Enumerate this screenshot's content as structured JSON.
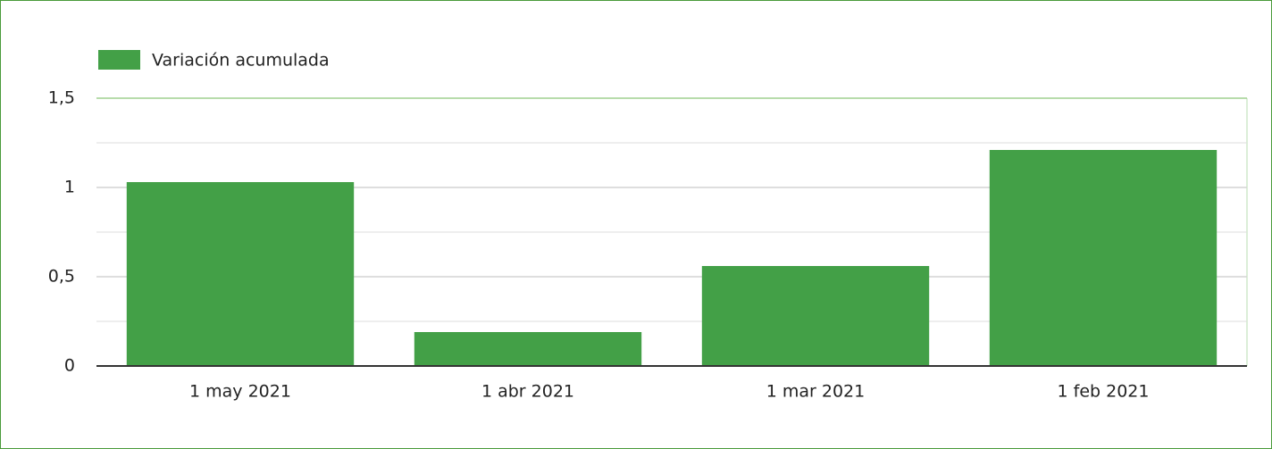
{
  "chart_data": {
    "type": "bar",
    "legend": "top-left",
    "series": [
      {
        "name": "Variación acumulada",
        "color": "#43a047",
        "values": [
          1.03,
          0.19,
          0.56,
          1.21
        ]
      }
    ],
    "categories": [
      "1 may 2021",
      "1 abr 2021",
      "1 mar 2021",
      "1 feb 2021"
    ],
    "ylim": [
      0,
      1.5
    ],
    "yticks": [
      0,
      {
        "value": 0.5,
        "label": "0,5"
      },
      1,
      {
        "value": 1.5,
        "label": "1,5"
      }
    ],
    "minor_yticks": [
      0.25,
      0.75,
      1.25
    ],
    "grid": true
  }
}
